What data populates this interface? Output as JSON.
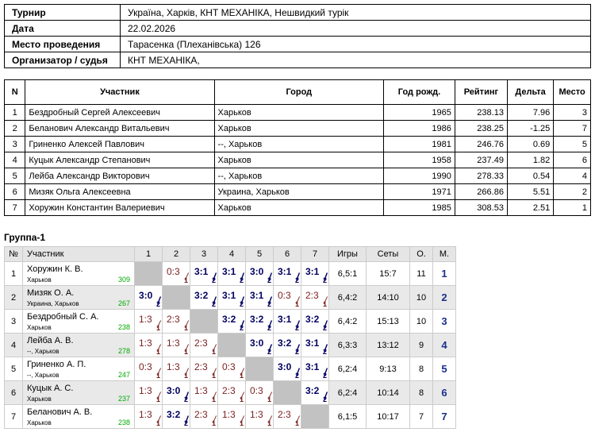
{
  "info": [
    {
      "key": "Турнир",
      "value": "Україна, Харків, КНТ МЕХАНІКА, Нешвидкий турік"
    },
    {
      "key": "Дата",
      "value": "22.02.2026"
    },
    {
      "key": "Место проведения",
      "value": "Тарасенка (Плеханівська) 126"
    },
    {
      "key": "Организатор / судья",
      "value": "КНТ МЕХАНІКА,"
    }
  ],
  "participants": {
    "headers": [
      "N",
      "Участник",
      "Город",
      "Год рожд.",
      "Рейтинг",
      "Дельта",
      "Место"
    ],
    "rows": [
      [
        "1",
        "Бездробный Сергей Алексеевич",
        "Харьков",
        "1965",
        "238.13",
        "7.96",
        "3"
      ],
      [
        "2",
        "Беланович Александр Витальевич",
        "Харьков",
        "1986",
        "238.25",
        "-1.25",
        "7"
      ],
      [
        "3",
        "Гриненко Алексей Павлович",
        "--, Харьков",
        "1981",
        "246.76",
        "0.69",
        "5"
      ],
      [
        "4",
        "Куцык Александр Степанович",
        "Харьков",
        "1958",
        "237.49",
        "1.82",
        "6"
      ],
      [
        "5",
        "Лейба Александр Викторович",
        "--, Харьков",
        "1990",
        "278.33",
        "0.54",
        "4"
      ],
      [
        "6",
        "Мизяк Ольга Алексеевна",
        "Украина, Харьков",
        "1971",
        "266.86",
        "5.51",
        "2"
      ],
      [
        "7",
        "Хоружин Константин Валериевич",
        "Харьков",
        "1985",
        "308.53",
        "2.51",
        "1"
      ]
    ]
  },
  "group": {
    "title": "Группа-1",
    "headers": {
      "no": "№",
      "player": "Участник",
      "cols": [
        "1",
        "2",
        "3",
        "4",
        "5",
        "6",
        "7"
      ],
      "games": "Игры",
      "sets": "Сеты",
      "points": "О.",
      "place": "М."
    },
    "rows": [
      {
        "no": "1",
        "name": "Хоружин К. В.",
        "city": "Харьков",
        "rating": "309",
        "cells": [
          null,
          {
            "s": "0:3",
            "p": "1",
            "w": false
          },
          {
            "s": "3:1",
            "p": "2",
            "w": true
          },
          {
            "s": "3:1",
            "p": "2",
            "w": true
          },
          {
            "s": "3:0",
            "p": "2",
            "w": true
          },
          {
            "s": "3:1",
            "p": "2",
            "w": true
          },
          {
            "s": "3:1",
            "p": "2",
            "w": true
          }
        ],
        "games": "6,5:1",
        "sets": "15:7",
        "points": "11",
        "place": "1"
      },
      {
        "no": "2",
        "name": "Мизяк О. А.",
        "city": "Украина, Харьков",
        "rating": "267",
        "cells": [
          {
            "s": "3:0",
            "p": "2",
            "w": true
          },
          null,
          {
            "s": "3:2",
            "p": "2",
            "w": true
          },
          {
            "s": "3:1",
            "p": "2",
            "w": true
          },
          {
            "s": "3:1",
            "p": "2",
            "w": true
          },
          {
            "s": "0:3",
            "p": "1",
            "w": false
          },
          {
            "s": "2:3",
            "p": "1",
            "w": false
          }
        ],
        "games": "6,4:2",
        "sets": "14:10",
        "points": "10",
        "place": "2"
      },
      {
        "no": "3",
        "name": "Бездробный С. А.",
        "city": "Харьков",
        "rating": "238",
        "cells": [
          {
            "s": "1:3",
            "p": "1",
            "w": false
          },
          {
            "s": "2:3",
            "p": "1",
            "w": false
          },
          null,
          {
            "s": "3:2",
            "p": "2",
            "w": true
          },
          {
            "s": "3:2",
            "p": "2",
            "w": true
          },
          {
            "s": "3:1",
            "p": "2",
            "w": true
          },
          {
            "s": "3:2",
            "p": "2",
            "w": true
          }
        ],
        "games": "6,4:2",
        "sets": "15:13",
        "points": "10",
        "place": "3"
      },
      {
        "no": "4",
        "name": "Лейба А. В.",
        "city": "--, Харьков",
        "rating": "278",
        "cells": [
          {
            "s": "1:3",
            "p": "1",
            "w": false
          },
          {
            "s": "1:3",
            "p": "1",
            "w": false
          },
          {
            "s": "2:3",
            "p": "1",
            "w": false
          },
          null,
          {
            "s": "3:0",
            "p": "2",
            "w": true
          },
          {
            "s": "3:2",
            "p": "2",
            "w": true
          },
          {
            "s": "3:1",
            "p": "2",
            "w": true
          }
        ],
        "games": "6,3:3",
        "sets": "13:12",
        "points": "9",
        "place": "4"
      },
      {
        "no": "5",
        "name": "Гриненко А. П.",
        "city": "--, Харьков",
        "rating": "247",
        "cells": [
          {
            "s": "0:3",
            "p": "1",
            "w": false
          },
          {
            "s": "1:3",
            "p": "1",
            "w": false
          },
          {
            "s": "2:3",
            "p": "1",
            "w": false
          },
          {
            "s": "0:3",
            "p": "1",
            "w": false
          },
          null,
          {
            "s": "3:0",
            "p": "2",
            "w": true
          },
          {
            "s": "3:1",
            "p": "2",
            "w": true
          }
        ],
        "games": "6,2:4",
        "sets": "9:13",
        "points": "8",
        "place": "5"
      },
      {
        "no": "6",
        "name": "Куцык А. С.",
        "city": "Харьков",
        "rating": "237",
        "cells": [
          {
            "s": "1:3",
            "p": "1",
            "w": false
          },
          {
            "s": "3:0",
            "p": "2",
            "w": true
          },
          {
            "s": "1:3",
            "p": "1",
            "w": false
          },
          {
            "s": "2:3",
            "p": "1",
            "w": false
          },
          {
            "s": "0:3",
            "p": "1",
            "w": false
          },
          null,
          {
            "s": "3:2",
            "p": "2",
            "w": true
          }
        ],
        "games": "6,2:4",
        "sets": "10:14",
        "points": "8",
        "place": "6"
      },
      {
        "no": "7",
        "name": "Беланович А. В.",
        "city": "Харьков",
        "rating": "238",
        "cells": [
          {
            "s": "1:3",
            "p": "1",
            "w": false
          },
          {
            "s": "3:2",
            "p": "2",
            "w": true
          },
          {
            "s": "2:3",
            "p": "1",
            "w": false
          },
          {
            "s": "1:3",
            "p": "1",
            "w": false
          },
          {
            "s": "1:3",
            "p": "1",
            "w": false
          },
          {
            "s": "2:3",
            "p": "1",
            "w": false
          },
          null
        ],
        "games": "6,1:5",
        "sets": "10:17",
        "points": "7",
        "place": "7"
      }
    ]
  }
}
